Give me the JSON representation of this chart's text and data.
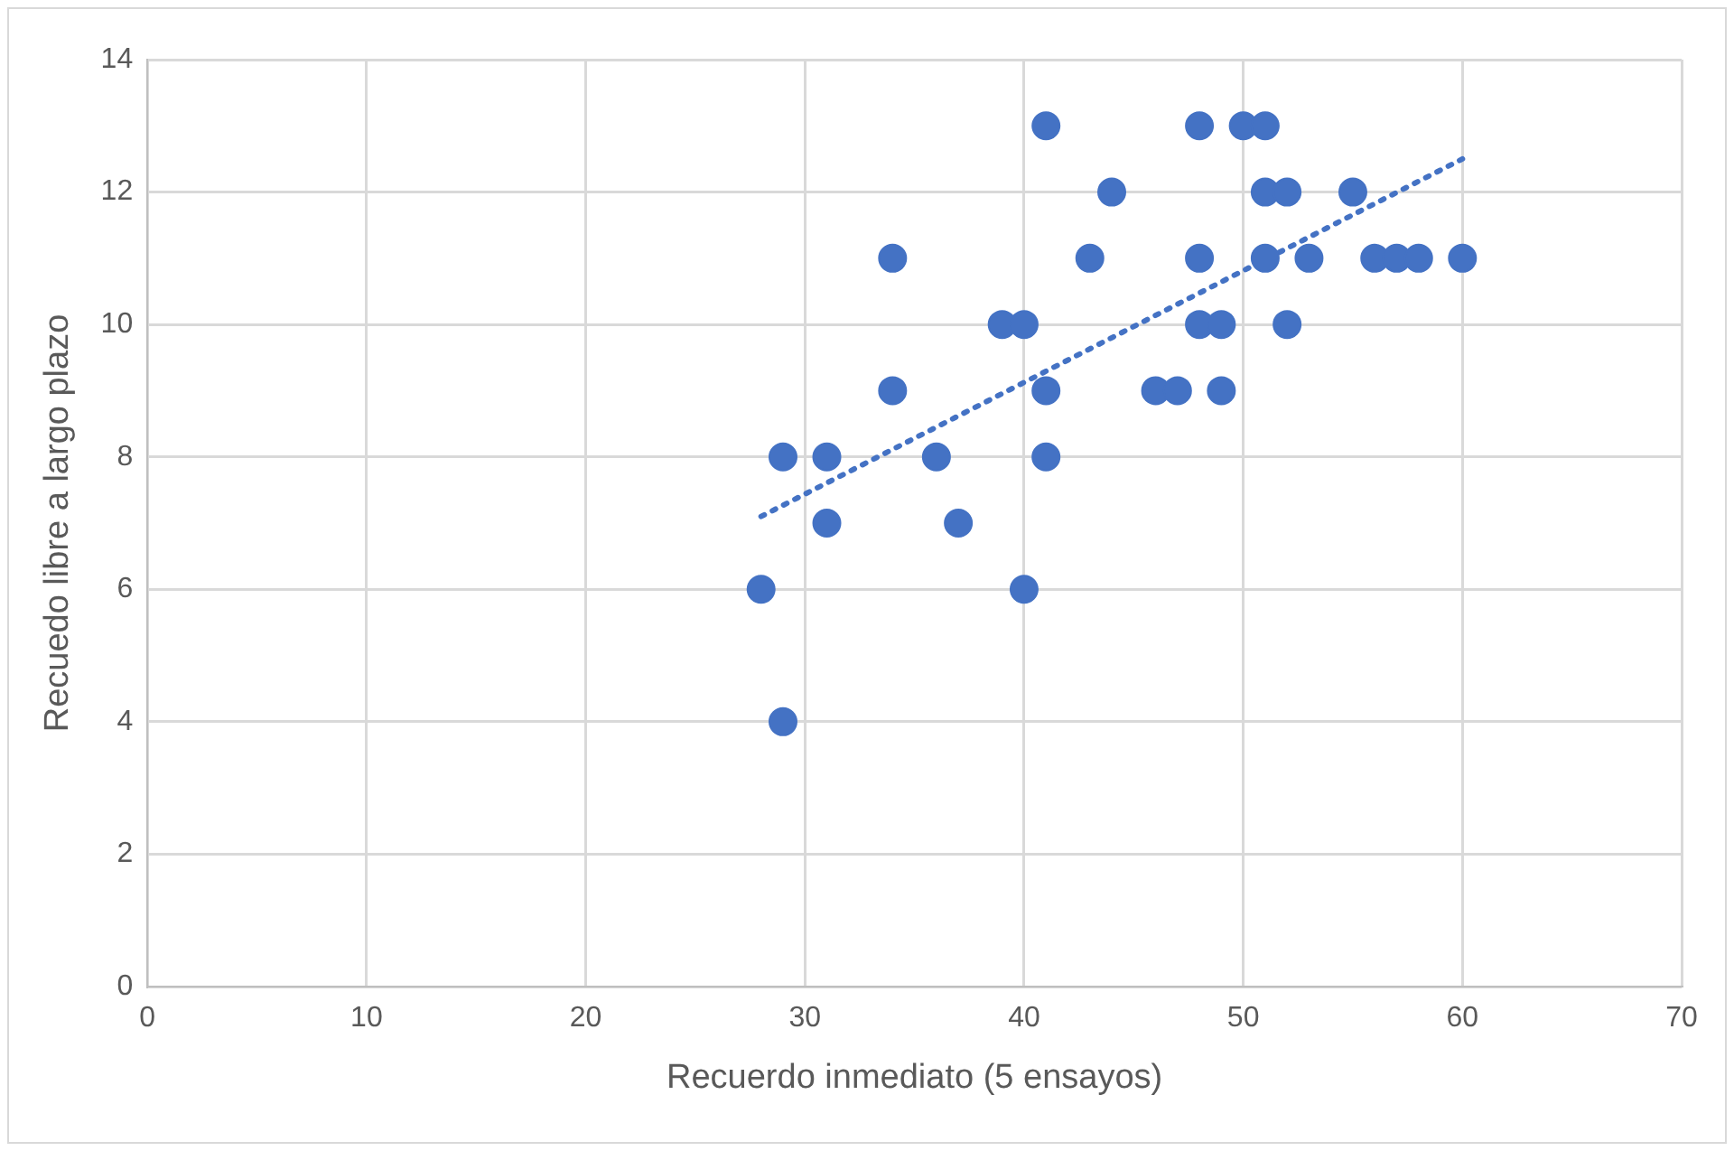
{
  "chart_data": {
    "type": "scatter",
    "xlabel": "Recuerdo inmediato (5 ensayos)",
    "ylabel": "Recuedo libre a largo plazo",
    "xlim": [
      0,
      70
    ],
    "xticks": [
      0,
      10,
      20,
      30,
      40,
      50,
      60,
      70
    ],
    "ylim": [
      0,
      14
    ],
    "yticks": [
      0,
      2,
      4,
      6,
      8,
      10,
      12,
      14
    ],
    "grid": true,
    "legend": false,
    "marker": "circle",
    "series": [
      {
        "color": "#4472c4",
        "x": [
          28,
          29,
          29,
          31,
          31,
          34,
          34,
          36,
          37,
          39,
          40,
          40,
          41,
          41,
          41,
          43,
          44,
          46,
          47,
          48,
          48,
          48,
          49,
          49,
          50,
          51,
          51,
          51,
          52,
          52,
          53,
          55,
          56,
          57,
          58,
          60
        ],
        "values": [
          6,
          8,
          4,
          8,
          7,
          11,
          9,
          8,
          7,
          10,
          10,
          6,
          13,
          9,
          8,
          11,
          12,
          9,
          9,
          13,
          11,
          10,
          10,
          9,
          13,
          13,
          12,
          11,
          12,
          10,
          11,
          12,
          11,
          11,
          11,
          11
        ]
      },
      {
        "type": "line",
        "color": "#4472c4",
        "line_style": "dotted",
        "marker": "none",
        "x": [
          28,
          60
        ],
        "values": [
          7.1,
          12.5
        ]
      }
    ]
  }
}
